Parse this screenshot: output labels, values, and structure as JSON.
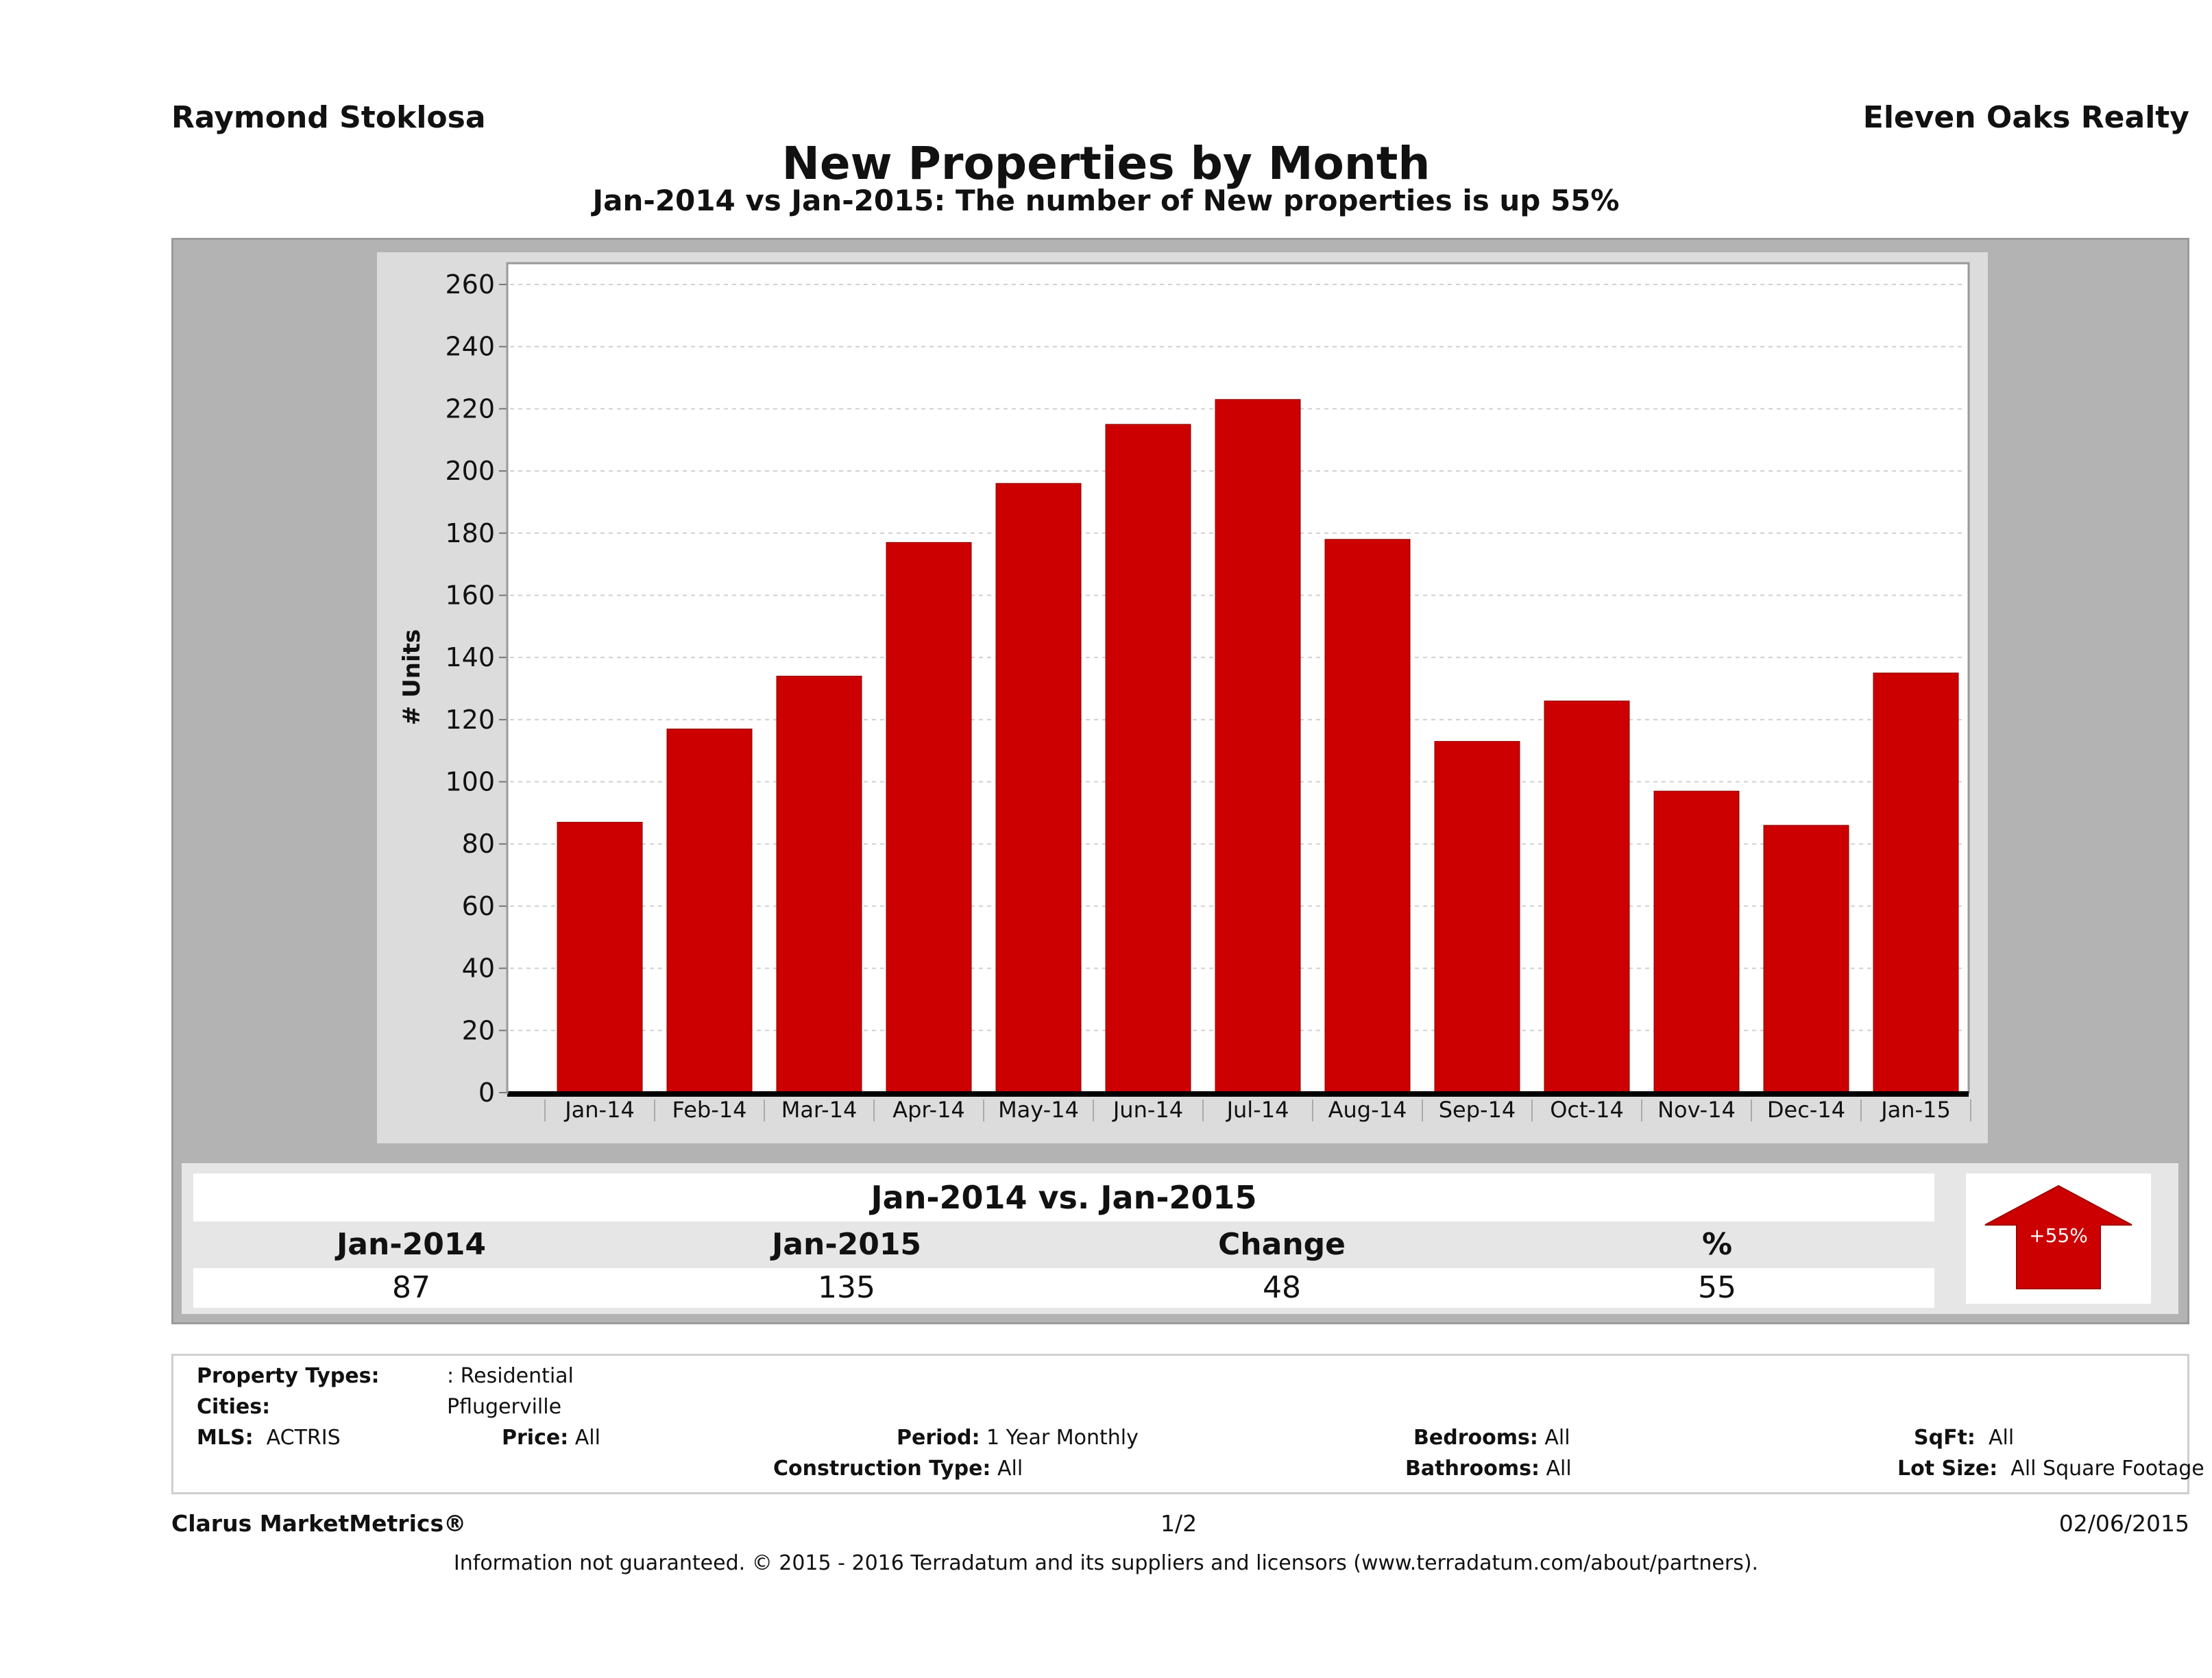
{
  "header": {
    "agent_name": "Raymond Stoklosa",
    "company_name": "Eleven Oaks Realty",
    "title": "New Properties by Month",
    "subtitle": "Jan-2014 vs Jan-2015: The number of New  properties is up 55%"
  },
  "colors": {
    "bar": "#cc0000",
    "panel": "#b3b3b3",
    "plot_frame": "#dcdcdc"
  },
  "chart_data": {
    "type": "bar",
    "title": "New Properties by Month",
    "xlabel": "",
    "ylabel": "# Units",
    "ylim": [
      0,
      260
    ],
    "ytick_step": 20,
    "grid": true,
    "categories": [
      "Jan-14",
      "Feb-14",
      "Mar-14",
      "Apr-14",
      "May-14",
      "Jun-14",
      "Jul-14",
      "Aug-14",
      "Sep-14",
      "Oct-14",
      "Nov-14",
      "Dec-14",
      "Jan-15"
    ],
    "values": [
      87,
      117,
      134,
      177,
      196,
      215,
      223,
      178,
      113,
      126,
      97,
      86,
      135
    ]
  },
  "summary": {
    "title": "Jan-2014 vs. Jan-2015",
    "headers": [
      "Jan-2014",
      "Jan-2015",
      "Change",
      "%"
    ],
    "values": [
      "87",
      "135",
      "48",
      "55"
    ],
    "arrow_label": "+55%",
    "arrow_direction": "up"
  },
  "criteria": {
    "property_types_label": "Property Types:",
    "property_types_value": ": Residential",
    "cities_label": "Cities:",
    "cities_value": "Pflugerville",
    "mls_label": "MLS:",
    "mls_value": "ACTRIS",
    "price_label": "Price:",
    "price_value": "All",
    "period_label": "Period:",
    "period_value": "1 Year Monthly",
    "construction_label": "Construction Type:",
    "construction_value": "All",
    "bedrooms_label": "Bedrooms:",
    "bedrooms_value": "All",
    "bathrooms_label": "Bathrooms:",
    "bathrooms_value": "All",
    "sqft_label": "SqFt:",
    "sqft_value": "All",
    "lotsize_label": "Lot Size:",
    "lotsize_value": "All Square Footage"
  },
  "footer": {
    "brand": "Clarus MarketMetrics®",
    "page": "1/2",
    "date": "02/06/2015",
    "disclaimer": "Information not guaranteed. © 2015 - 2016 Terradatum and its suppliers and licensors (www.terradatum.com/about/partners)."
  }
}
